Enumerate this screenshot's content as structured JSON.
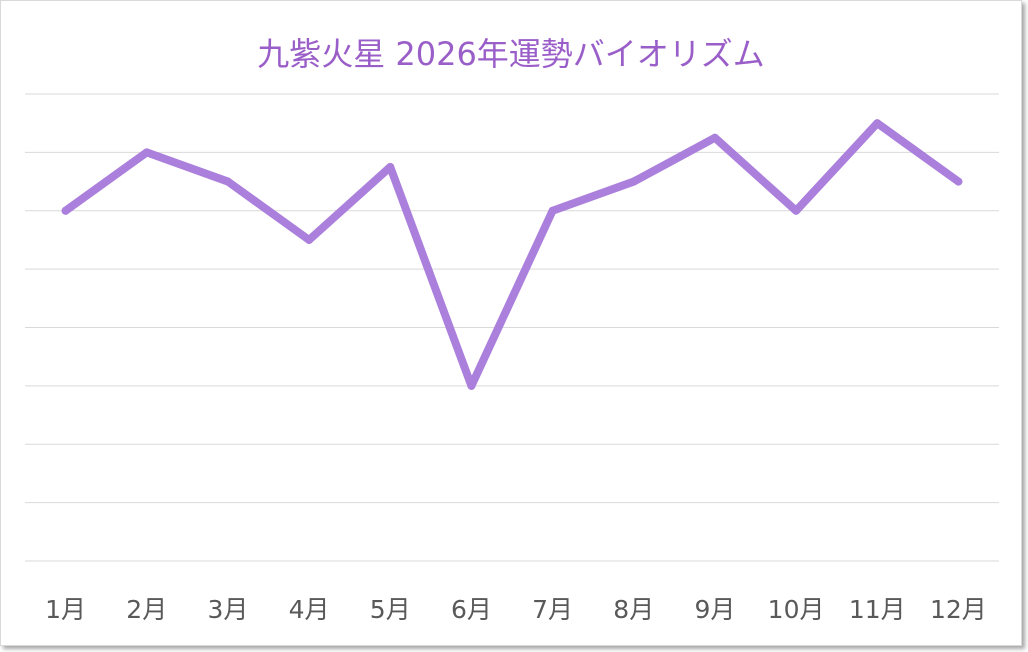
{
  "chart_data": {
    "type": "line",
    "title": "九紫火星 2026年運勢バイオリズム",
    "categories": [
      "1月",
      "2月",
      "3月",
      "4月",
      "5月",
      "6月",
      "7月",
      "8月",
      "9月",
      "10月",
      "11月",
      "12月"
    ],
    "series": [
      {
        "values": [
          4,
          5,
          4.5,
          3.5,
          4.75,
          1,
          4,
          4.5,
          5.25,
          4,
          5.5,
          4.5
        ]
      }
    ],
    "ylim": [
      -2,
      6
    ],
    "grid": true,
    "legend": "none",
    "colors": {
      "line": "#ab7fdc",
      "title": "#9a5ec8",
      "grid": "#d9d9d9",
      "tick_label": "#595959"
    }
  }
}
